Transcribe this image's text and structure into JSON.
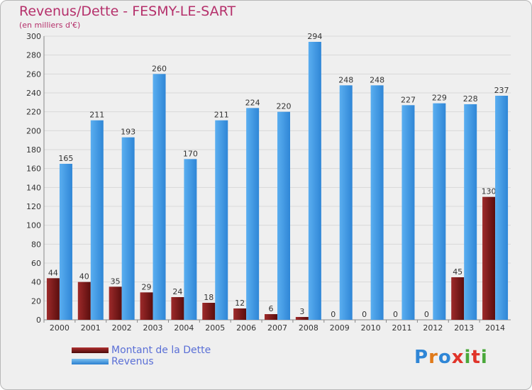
{
  "chart_data": {
    "type": "bar",
    "title": "Revenus/Dette - FESMY-LE-SART",
    "subtitle": "(en milliers d'€)",
    "categories": [
      "2000",
      "2001",
      "2002",
      "2003",
      "2004",
      "2005",
      "2006",
      "2007",
      "2008",
      "2009",
      "2010",
      "2011",
      "2012",
      "2013",
      "2014"
    ],
    "series": [
      {
        "name": "Montant de la Dette",
        "color": "#7a1a1a",
        "values": [
          44,
          40,
          35,
          29,
          24,
          18,
          12,
          6,
          3,
          0,
          0,
          0,
          0,
          45,
          130
        ]
      },
      {
        "name": "Revenus",
        "color": "#3a8fd9",
        "values": [
          165,
          211,
          193,
          260,
          170,
          211,
          224,
          220,
          294,
          248,
          248,
          227,
          229,
          228,
          237
        ]
      }
    ],
    "ylim": [
      0,
      300
    ],
    "yticks": [
      0,
      20,
      40,
      60,
      80,
      100,
      120,
      140,
      160,
      180,
      200,
      220,
      240,
      260,
      280,
      300
    ],
    "grid": true,
    "legend_position": "bottom-left",
    "logo_text": "Proxiti"
  }
}
